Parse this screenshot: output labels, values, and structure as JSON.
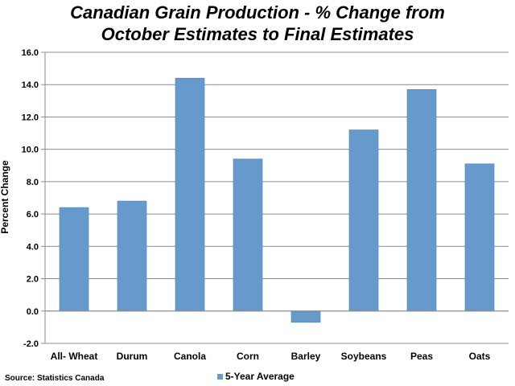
{
  "chart_data": {
    "type": "bar",
    "title_line1": "Canadian Grain Production - % Change from",
    "title_line2": "October Estimates to Final Estimates",
    "ylabel": "Percent Change",
    "xlabel": "",
    "ylim": [
      -2.0,
      16.0
    ],
    "yticks": [
      "16.0",
      "14.0",
      "12.0",
      "10.0",
      "8.0",
      "6.0",
      "4.0",
      "2.0",
      "0.0",
      "-2.0"
    ],
    "ytick_values": [
      16,
      14,
      12,
      10,
      8,
      6,
      4,
      2,
      0,
      -2
    ],
    "grid": true,
    "legend_position": "bottom",
    "categories": [
      "All- Wheat",
      "Durum",
      "Canola",
      "Corn",
      "Barley",
      "Soybeans",
      "Peas",
      "Oats"
    ],
    "series": [
      {
        "name": "5-Year Average",
        "color": "#6699CC",
        "values": [
          6.4,
          6.8,
          14.4,
          9.4,
          -0.7,
          11.2,
          13.7,
          9.1
        ]
      }
    ],
    "source": "Source: Statistics Canada"
  }
}
